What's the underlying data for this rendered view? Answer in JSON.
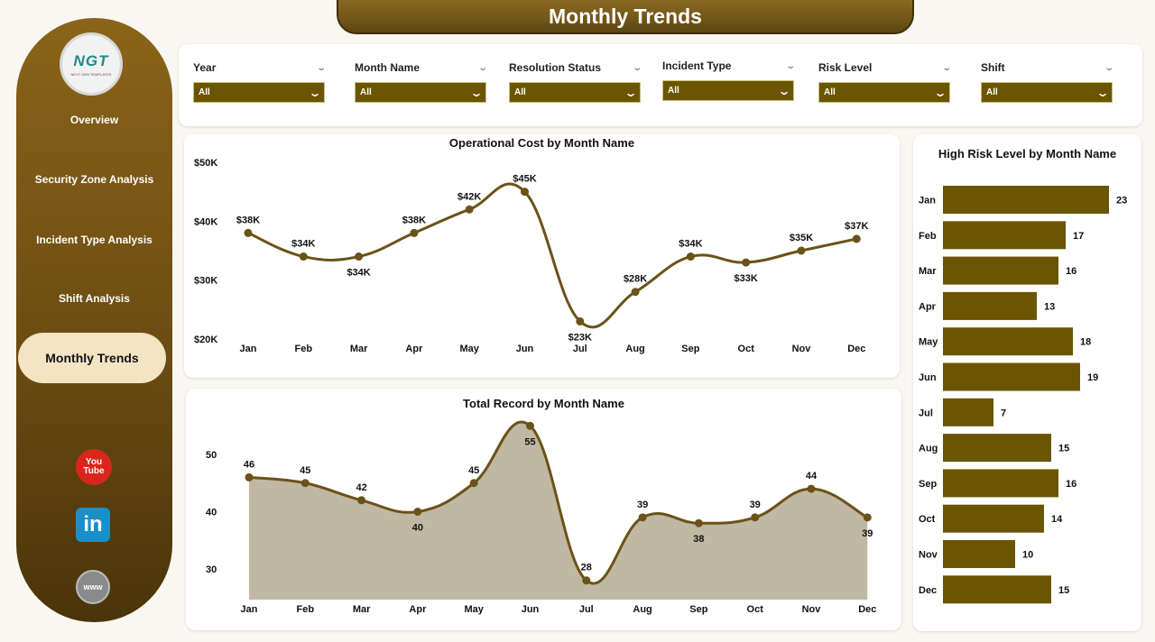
{
  "page_title": "Monthly Trends",
  "logo": {
    "main": "NGT",
    "sub": "NEXT GEN TEMPLATES"
  },
  "nav": {
    "items": [
      "Overview",
      "Security Zone Analysis",
      "Incident Type Analysis",
      "Shift Analysis"
    ],
    "active": "Monthly Trends"
  },
  "social": {
    "youtube_top": "You",
    "youtube_bottom": "Tube",
    "linkedin": "in",
    "web": "www"
  },
  "filters": [
    {
      "label": "Year",
      "value": "All"
    },
    {
      "label": "Month Name",
      "value": "All"
    },
    {
      "label": "Resolution Status",
      "value": "All"
    },
    {
      "label": "Incident Type",
      "value": "All"
    },
    {
      "label": "Risk Level",
      "value": "All"
    },
    {
      "label": "Shift",
      "value": "All"
    }
  ],
  "colors": {
    "accent": "#6b5500",
    "line": "#6b5218",
    "area": "#c1b8a3",
    "bar": "#6b5500"
  },
  "chart_data": [
    {
      "type": "line",
      "title": "Operational Cost by Month Name",
      "categories": [
        "Jan",
        "Feb",
        "Mar",
        "Apr",
        "May",
        "Jun",
        "Jul",
        "Aug",
        "Sep",
        "Oct",
        "Nov",
        "Dec"
      ],
      "values": [
        38,
        34,
        34,
        38,
        42,
        45,
        23,
        28,
        34,
        33,
        35,
        37
      ],
      "labels": [
        "$38K",
        "$34K",
        "$34K",
        "$38K",
        "$42K",
        "$45K",
        "$23K",
        "$28K",
        "$34K",
        "$33K",
        "$35K",
        "$37K"
      ],
      "yticks": [
        "$50K",
        "$40K",
        "$30K",
        "$20K"
      ],
      "ylim": [
        20,
        50
      ]
    },
    {
      "type": "area",
      "title": "Total Record by Month Name",
      "categories": [
        "Jan",
        "Feb",
        "Mar",
        "Apr",
        "May",
        "Jun",
        "Jul",
        "Aug",
        "Sep",
        "Oct",
        "Nov",
        "Dec"
      ],
      "values": [
        46,
        45,
        42,
        40,
        45,
        55,
        28,
        39,
        38,
        39,
        44,
        39
      ],
      "yticks": [
        "50",
        "40",
        "30"
      ],
      "ylim": [
        26,
        57
      ]
    },
    {
      "type": "bar",
      "orientation": "horizontal",
      "title": "High Risk Level by Month Name",
      "categories": [
        "Jan",
        "Feb",
        "Mar",
        "Apr",
        "May",
        "Jun",
        "Jul",
        "Aug",
        "Sep",
        "Oct",
        "Nov",
        "Dec"
      ],
      "values": [
        23,
        17,
        16,
        13,
        18,
        19,
        7,
        15,
        16,
        14,
        10,
        15
      ]
    }
  ]
}
